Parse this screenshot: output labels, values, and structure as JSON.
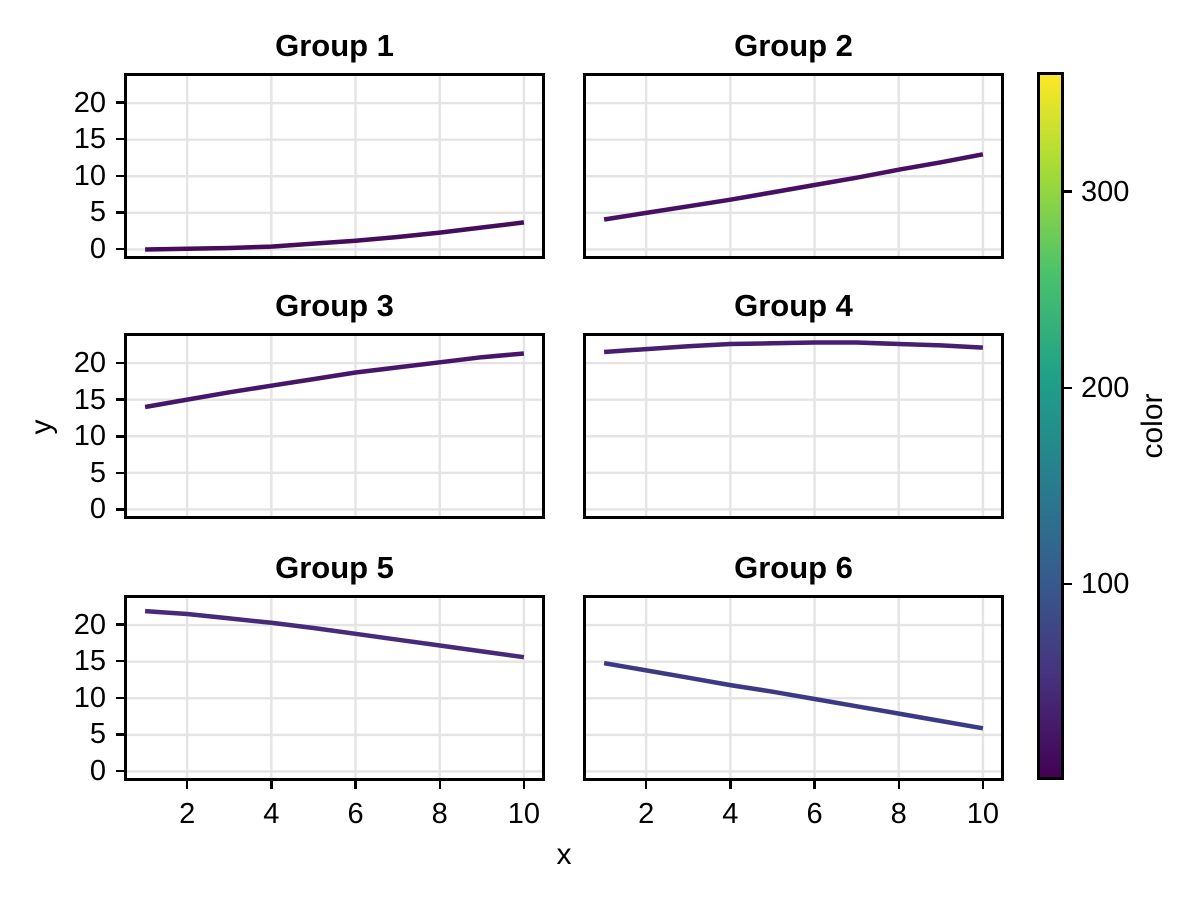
{
  "chart_data": {
    "type": "line",
    "layout_kind": "facet-grid-3x2-with-colorbar",
    "xlabel": "x",
    "ylabel": "y",
    "x": [
      1,
      2,
      3,
      4,
      5,
      6,
      7,
      8,
      9,
      10
    ],
    "x_ticks": [
      2,
      4,
      6,
      8,
      10
    ],
    "y_ticks": [
      0,
      5,
      10,
      15,
      20
    ],
    "xlim": [
      0.5,
      10.5
    ],
    "ylim": [
      -1.3,
      24.1
    ],
    "grid": true,
    "facets": [
      {
        "title": "Group 1",
        "line_color": "#460d5d",
        "y": [
          0.0,
          0.1,
          0.2,
          0.4,
          0.8,
          1.2,
          1.7,
          2.3,
          3.0,
          3.7
        ]
      },
      {
        "title": "Group 2",
        "line_color": "#471063",
        "y": [
          4.1,
          5.0,
          5.9,
          6.8,
          7.8,
          8.8,
          9.8,
          10.9,
          11.9,
          13.0
        ]
      },
      {
        "title": "Group 3",
        "line_color": "#471669",
        "y": [
          14.0,
          15.0,
          16.0,
          16.9,
          17.8,
          18.7,
          19.4,
          20.1,
          20.8,
          21.3
        ]
      },
      {
        "title": "Group 4",
        "line_color": "#481e70",
        "y": [
          21.5,
          21.9,
          22.3,
          22.6,
          22.7,
          22.8,
          22.8,
          22.6,
          22.4,
          22.1
        ]
      },
      {
        "title": "Group 5",
        "line_color": "#472a7a",
        "y": [
          21.9,
          21.5,
          20.9,
          20.3,
          19.6,
          18.8,
          18.0,
          17.2,
          16.4,
          15.6
        ]
      },
      {
        "title": "Group 6",
        "line_color": "#3c3a85",
        "y": [
          14.8,
          13.8,
          12.8,
          11.8,
          10.9,
          9.9,
          8.9,
          7.9,
          6.9,
          5.9
        ]
      }
    ],
    "colorbar": {
      "label": "color",
      "ticks": [
        100,
        200,
        300
      ],
      "range": [
        0,
        361
      ],
      "colormap": "viridis",
      "gradient_stops": [
        "#440154",
        "#46327e",
        "#365c8d",
        "#277f8e",
        "#1fa187",
        "#4ac16d",
        "#a0da39",
        "#fde725"
      ]
    },
    "style": {
      "grid_color": "#e4e4e4",
      "spine_color": "#000000",
      "background": "#ffffff"
    }
  }
}
